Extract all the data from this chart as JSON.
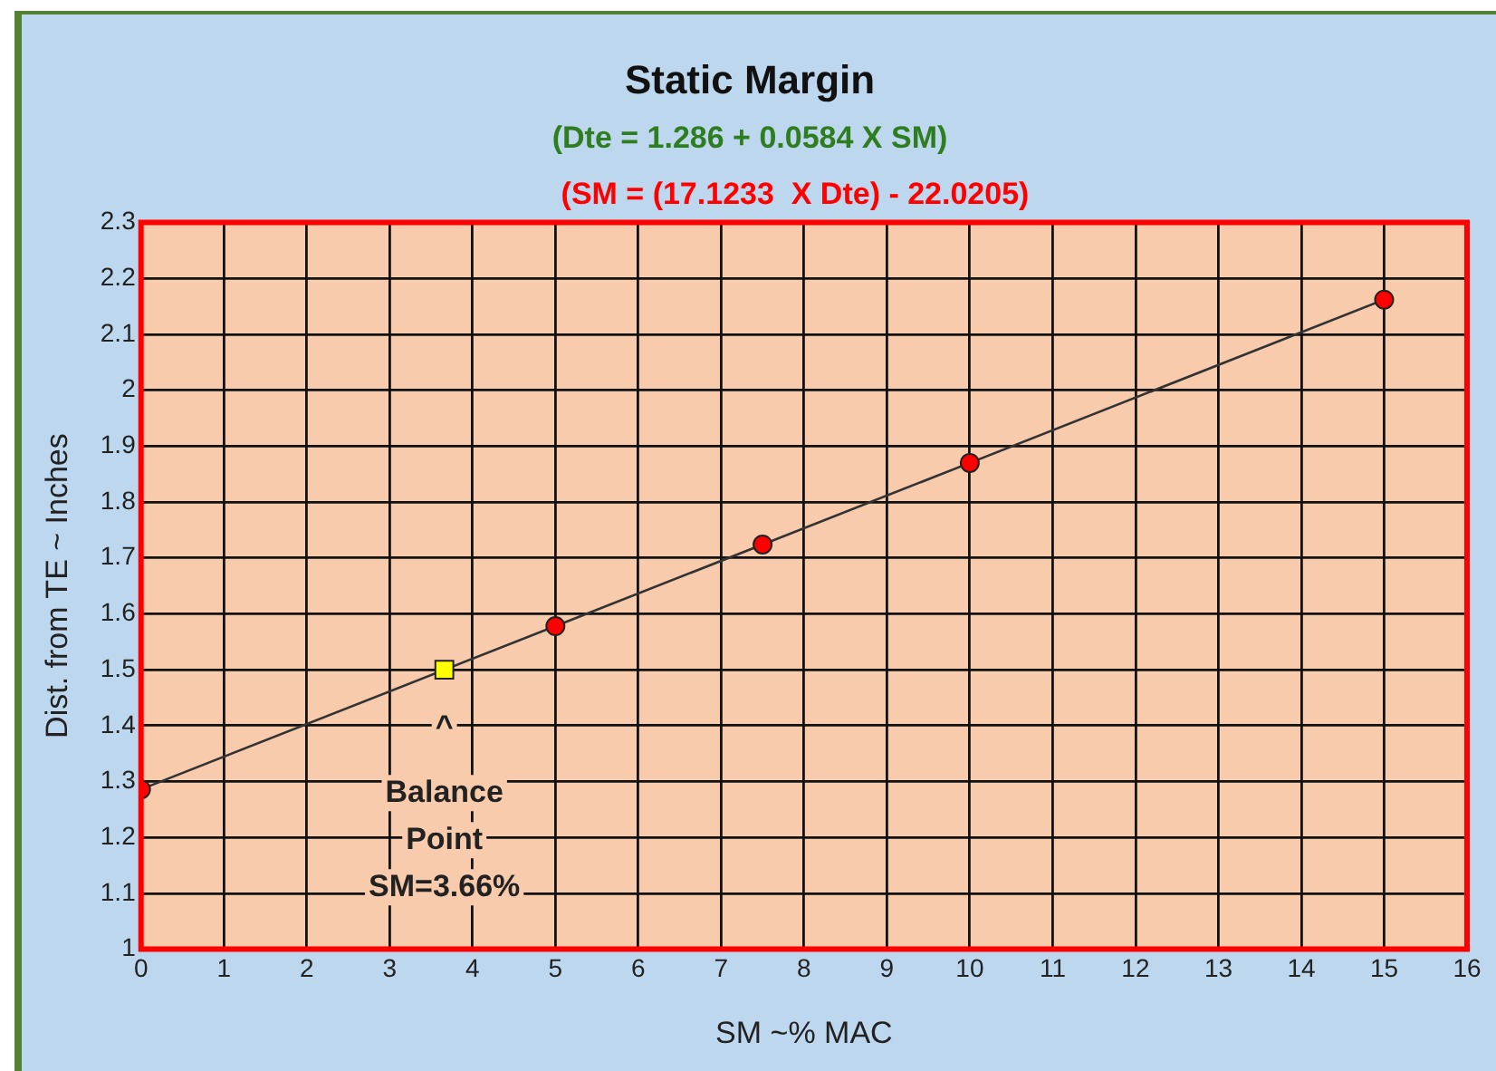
{
  "chart_data": {
    "type": "line",
    "title": "Static Margin",
    "subtitle": "(Dte = 1.286 + 0.0584 X SM)",
    "xlabel": "SM ~% MAC",
    "ylabel": "Dist. from TE ~ Inches",
    "series": [
      {
        "type": "line",
        "color": "#ff0000",
        "x": [
          0,
          5,
          7.5,
          10,
          15
        ],
        "values": [
          1.286,
          1.578,
          1.724,
          1.87,
          2.162
        ],
        "marker": "circle"
      },
      {
        "type": "scatter",
        "color": "#ffff00",
        "x": [
          3.66
        ],
        "values": [
          1.5
        ],
        "marker": "square"
      }
    ],
    "annotations": [
      "(SM = (17.1233  X Dte) - 22.0205)",
      {
        "text": "^\nBalance\nPoint\nSM=3.66%",
        "x": 3.66,
        "y": 1.5
      }
    ],
    "xlim": [
      0,
      16
    ],
    "xticks": [
      0,
      1,
      2,
      3,
      4,
      5,
      6,
      7,
      8,
      9,
      10,
      11,
      12,
      13,
      14,
      15,
      16
    ],
    "ylim": [
      1,
      2.3
    ],
    "yticks": [
      1,
      1.1,
      1.2,
      1.3,
      1.4,
      1.5,
      1.6,
      1.7,
      1.8,
      1.9,
      2,
      2.1,
      2.2,
      2.3
    ],
    "grid": true,
    "legend": false
  }
}
